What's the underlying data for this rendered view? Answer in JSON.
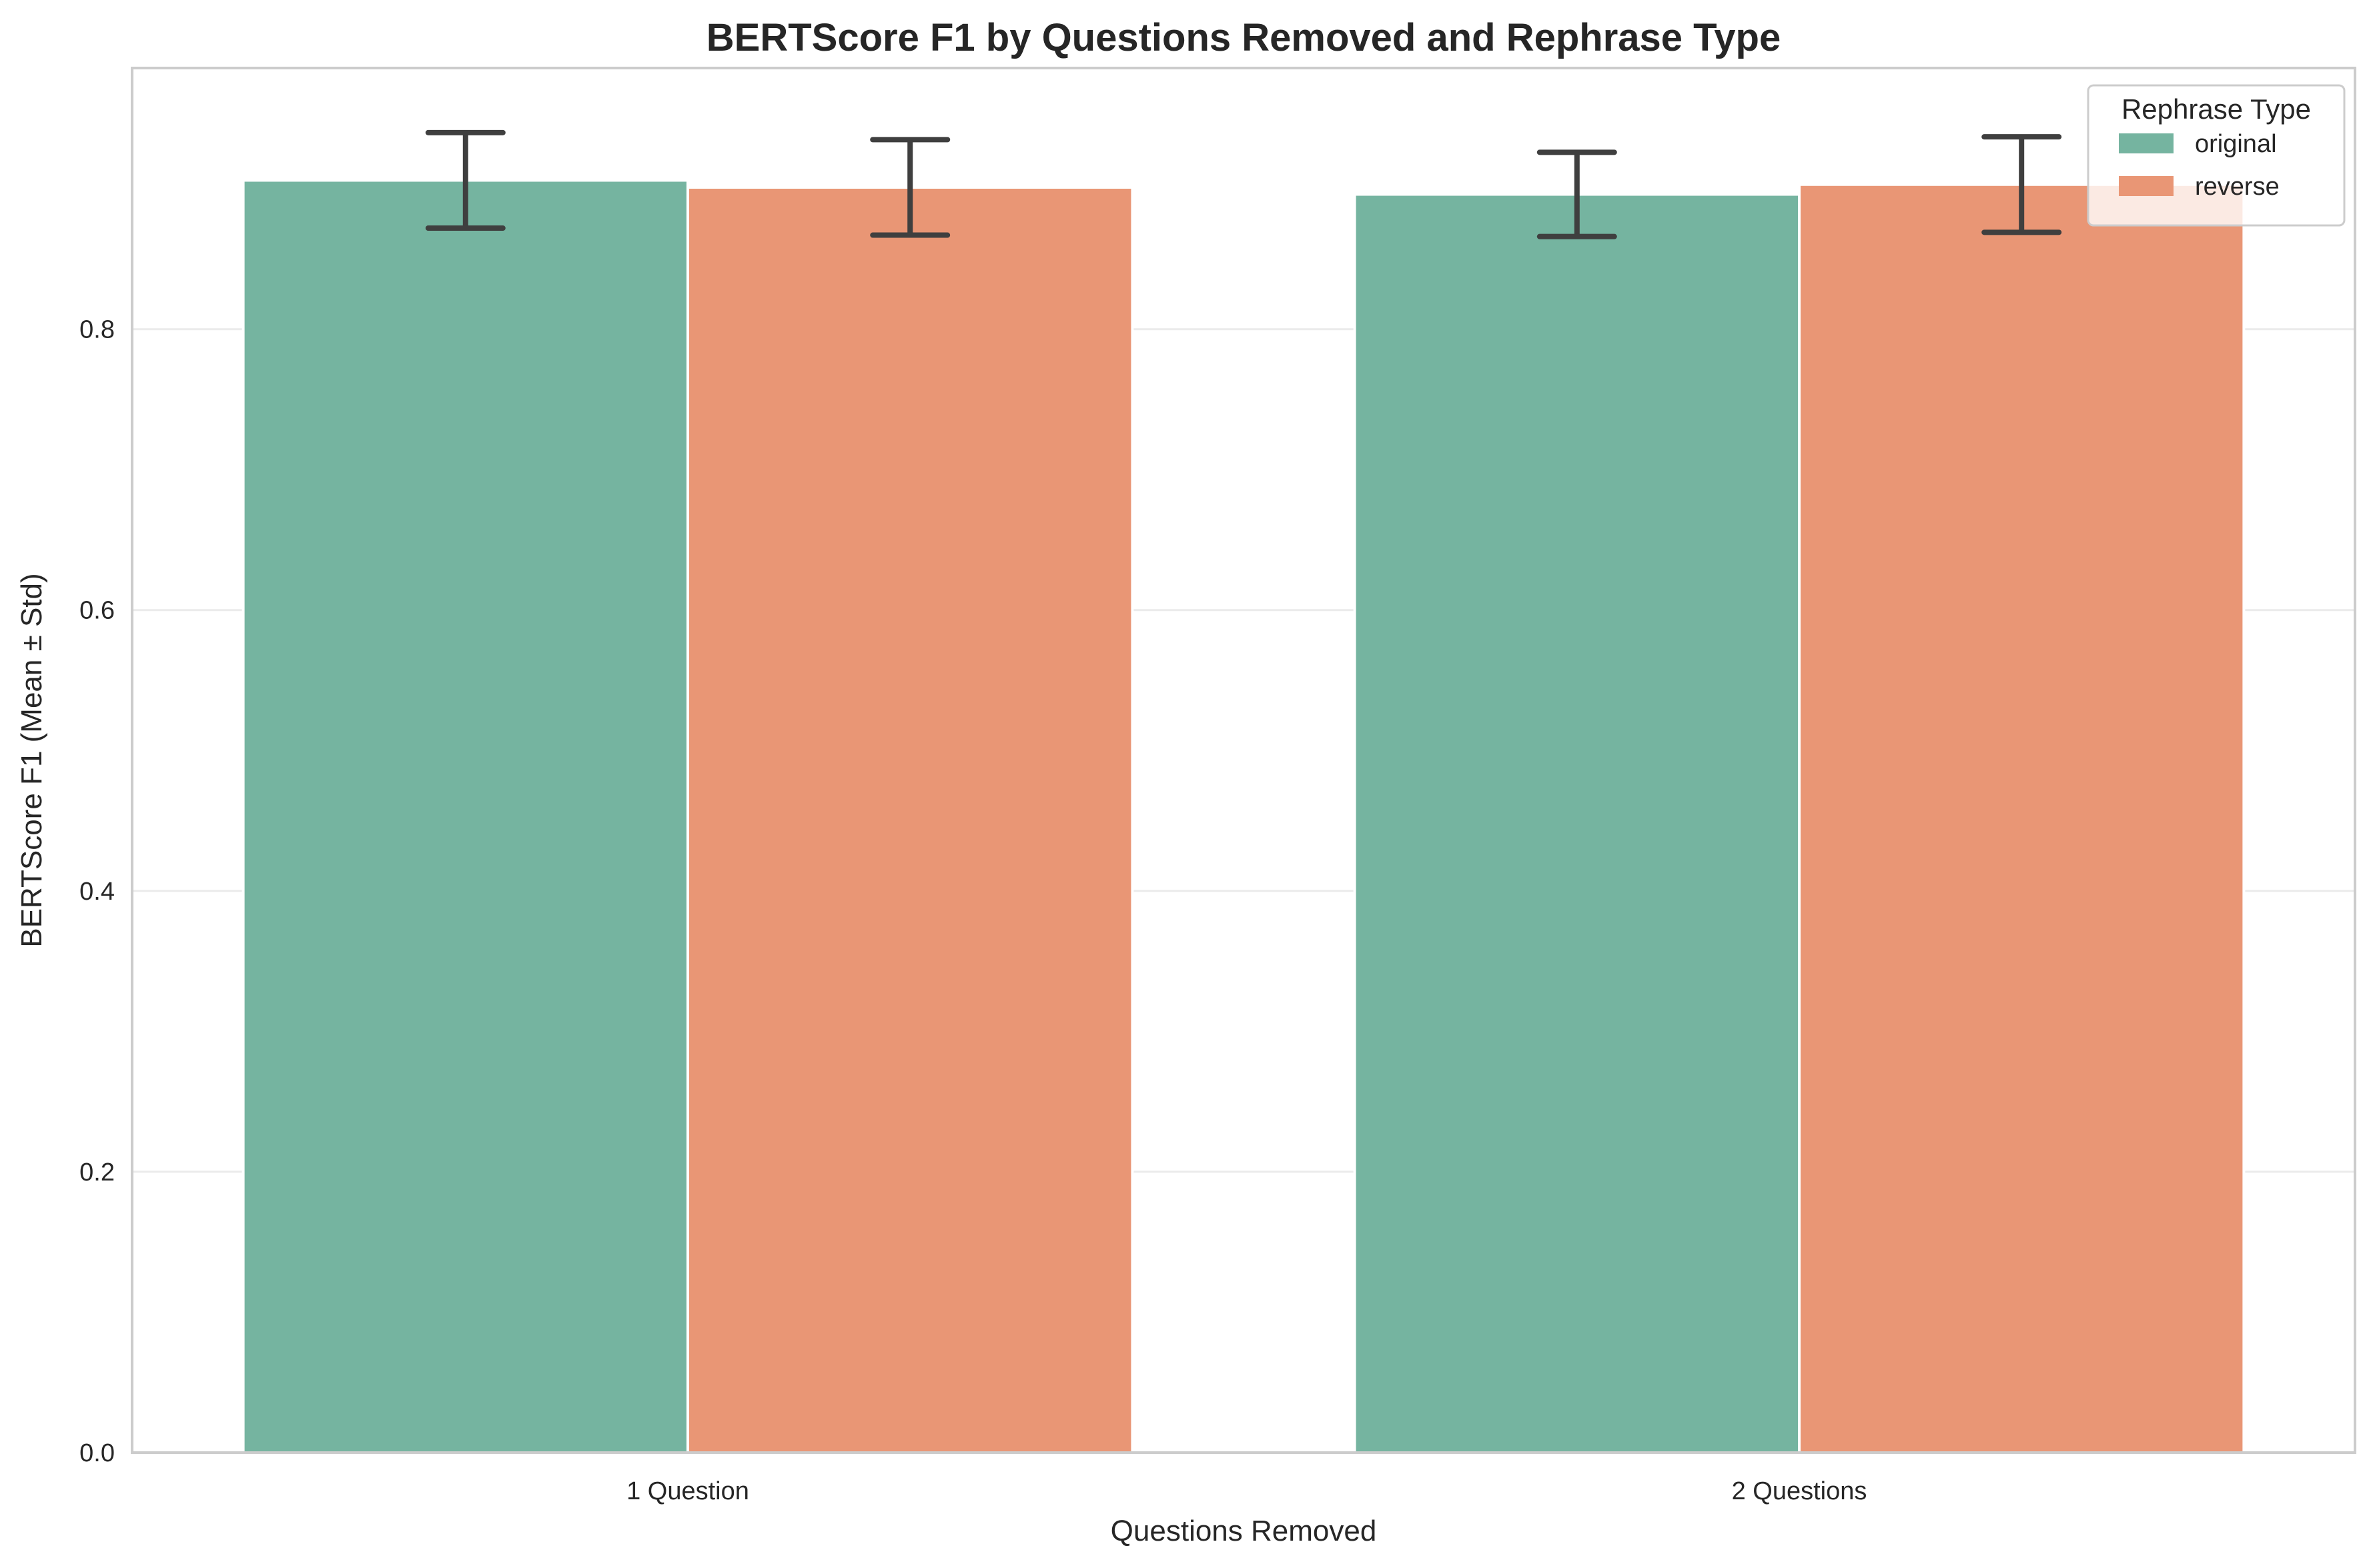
{
  "chart_data": {
    "type": "bar",
    "title": "BERTScore F1 by Questions Removed and Rephrase Type",
    "xlabel": "Questions Removed",
    "ylabel": "BERTScore F1 (Mean ± Std)",
    "categories": [
      "1 Question",
      "2 Questions"
    ],
    "series": [
      {
        "name": "original",
        "color": "#75b4a0",
        "values": [
          0.906,
          0.896
        ],
        "std": [
          0.034,
          0.03
        ]
      },
      {
        "name": "reverse",
        "color": "#e99675",
        "values": [
          0.901,
          0.903
        ],
        "std": [
          0.034,
          0.034
        ]
      }
    ],
    "ylim": [
      0,
      0.986
    ],
    "yticks": [
      "0.0",
      "0.2",
      "0.4",
      "0.6",
      "0.8"
    ],
    "ytick_values": [
      0,
      0.2,
      0.4,
      0.6,
      0.8
    ],
    "legend": {
      "title": "Rephrase Type",
      "placement": "top-right"
    },
    "grid": "y"
  }
}
